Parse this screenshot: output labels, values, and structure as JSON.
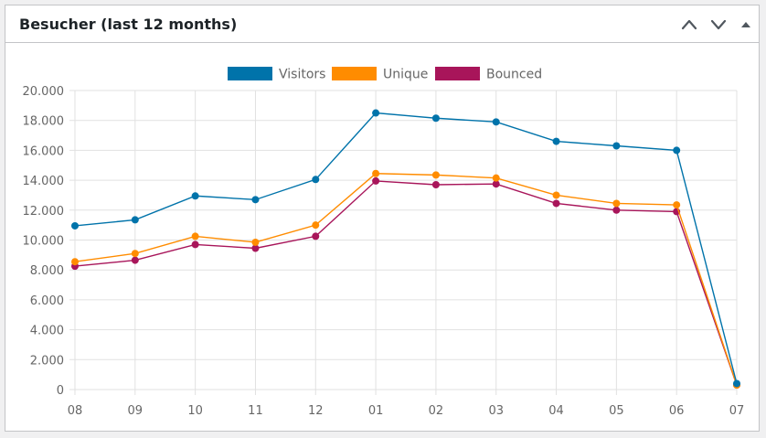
{
  "widget": {
    "title": "Besucher (last 12 months)",
    "controls": {
      "move_up_icon": "chevron-up-icon",
      "move_down_icon": "chevron-down-icon",
      "toggle_icon": "caret-up-icon"
    }
  },
  "chart_data": {
    "type": "line",
    "categories": [
      "08",
      "09",
      "10",
      "11",
      "12",
      "01",
      "02",
      "03",
      "04",
      "05",
      "06",
      "07"
    ],
    "ylim": [
      0,
      20000
    ],
    "yticks": [
      "0",
      "2.000",
      "4.000",
      "6.000",
      "8.000",
      "10.000",
      "12.000",
      "14.000",
      "16.000",
      "18.000",
      "20.000"
    ],
    "ytick_values": [
      0,
      2000,
      4000,
      6000,
      8000,
      10000,
      12000,
      14000,
      16000,
      18000,
      20000
    ],
    "grid": true,
    "legend_position": "top",
    "series": [
      {
        "name": "Visitors",
        "color": "#0073aa",
        "values": [
          10950,
          11350,
          12950,
          12700,
          14050,
          18500,
          18150,
          17900,
          16600,
          16300,
          16000,
          400
        ]
      },
      {
        "name": "Unique",
        "color": "#ff8c00",
        "values": [
          8550,
          9100,
          10250,
          9850,
          11000,
          14450,
          14350,
          14150,
          13000,
          12450,
          12350,
          300
        ]
      },
      {
        "name": "Bounced",
        "color": "#a8155a",
        "values": [
          8250,
          8650,
          9700,
          9450,
          10250,
          13950,
          13700,
          13750,
          12450,
          12000,
          11900,
          300
        ]
      }
    ]
  }
}
